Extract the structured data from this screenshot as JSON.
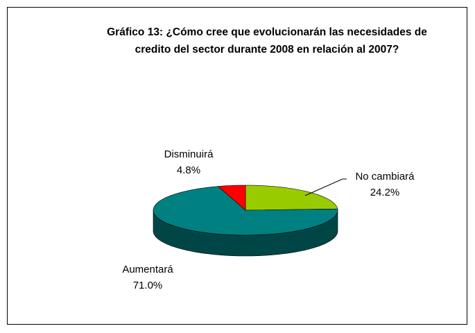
{
  "chart_data": {
    "type": "pie",
    "title": "Gráfico 13: ¿Cómo cree que evolucionarán las necesidades de credito del sector durante 2008 en relación al 2007?",
    "categories": [
      "No cambiará",
      "Aumentará",
      "Disminuirá"
    ],
    "values": [
      24.2,
      71.0,
      4.8
    ],
    "value_labels": [
      "24.2%",
      "71.0%",
      "4.8%"
    ],
    "colors": [
      "#99cc00",
      "#008080",
      "#ff0000"
    ]
  }
}
